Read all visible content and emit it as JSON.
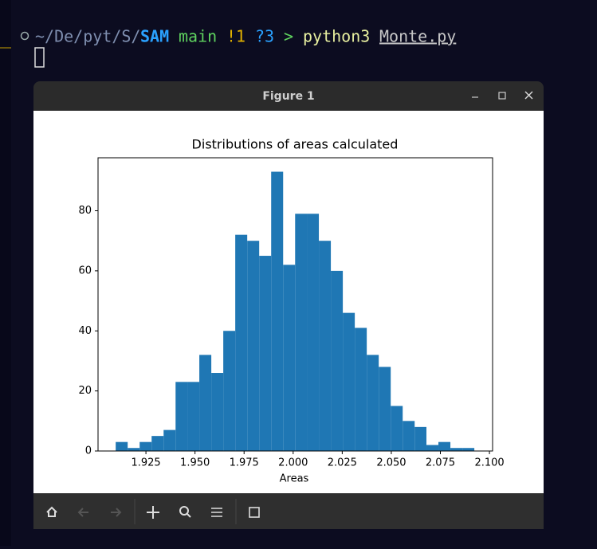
{
  "terminal": {
    "path": "~/De/pyt/S/",
    "dir": "SAM",
    "branch": "main",
    "modified": "!1",
    "untracked": "?3",
    "prompt": ">",
    "command": "python3",
    "argument": "Monte.py"
  },
  "window": {
    "title": "Figure 1"
  },
  "chart_data": {
    "type": "histogram",
    "title": "Distributions of areas calculated",
    "x_label": "Areas",
    "color": "#1f77b4",
    "bins": [
      1.9096,
      1.9157,
      1.9218,
      1.9279,
      1.934,
      1.9401,
      1.9461,
      1.9522,
      1.9583,
      1.9644,
      1.9705,
      1.9766,
      1.9827,
      1.9888,
      1.9949,
      2.001,
      2.007,
      2.0131,
      2.0192,
      2.0253,
      2.0314,
      2.0375,
      2.0436,
      2.0497,
      2.0558,
      2.0619,
      2.0679,
      2.074,
      2.0801,
      2.0862,
      2.0923
    ],
    "values": [
      3,
      1,
      3,
      5,
      7,
      23,
      23,
      32,
      26,
      40,
      72,
      70,
      65,
      93,
      62,
      79,
      79,
      70,
      60,
      46,
      41,
      32,
      28,
      15,
      10,
      8,
      2,
      3,
      1,
      1
    ],
    "xlim": [
      1.9006,
      2.1016
    ],
    "ylim": [
      0,
      97.65
    ],
    "xticks": [
      1.925,
      {
        "value": 1.95,
        "label": "1.950"
      },
      1.975,
      {
        "value": 2.0,
        "label": "2.000"
      },
      2.025,
      {
        "value": 2.05,
        "label": "2.050"
      },
      2.075,
      {
        "value": 2.1,
        "label": "2.100"
      }
    ],
    "yticks": [
      0,
      20,
      40,
      60,
      80
    ]
  }
}
